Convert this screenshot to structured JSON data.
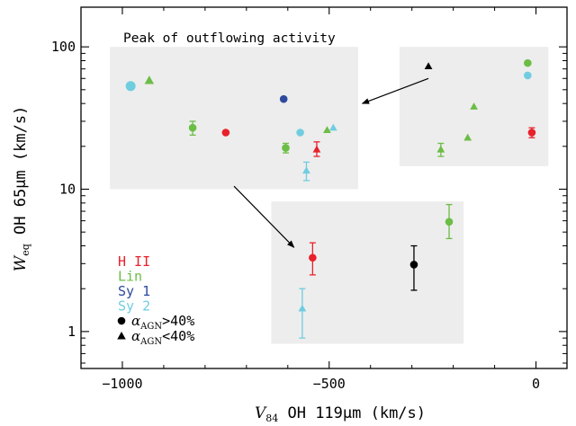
{
  "colors": {
    "hii": "#e8212a",
    "lin": "#6cbd45",
    "sy1": "#2e4a9e",
    "sy2": "#70cde0",
    "other": "#000000",
    "box_fill": "#ededed",
    "axis": "#000000"
  },
  "chart_data": {
    "type": "scatter",
    "title": "",
    "xlabel": "V84 OH 119μm (km/s)",
    "ylabel": "Weq OH 65μm (km/s)",
    "xlabel_parts": {
      "var": "V",
      "sub": "84",
      "rest": " OH 119μm (km/s)"
    },
    "ylabel_parts": {
      "var": "W",
      "sub": "eq",
      "rest": " OH 65μm (km/s)"
    },
    "xlim": [
      -1100,
      75
    ],
    "ylim": [
      0.55,
      190
    ],
    "yscale": "log",
    "grid": false,
    "xticks": [
      {
        "value": -1000,
        "label": "−1000"
      },
      {
        "value": -500,
        "label": "−500"
      },
      {
        "value": 0,
        "label": "0"
      }
    ],
    "yticks": [
      {
        "value": 1,
        "label": "1"
      },
      {
        "value": 10,
        "label": "10"
      },
      {
        "value": 100,
        "label": "100"
      }
    ],
    "annotations": {
      "peak_label": "Peak of outflowing activity"
    },
    "legend": {
      "position": "bottom-left",
      "entries": [
        {
          "label": "H II",
          "color": "hii"
        },
        {
          "label": "Lin",
          "color": "lin"
        },
        {
          "label": "Sy 1",
          "color": "sy1"
        },
        {
          "label": "Sy 2",
          "color": "sy2"
        }
      ],
      "markers": [
        {
          "symbol": "circle",
          "sym": "α",
          "sub": "AGN",
          "cond": ">40%"
        },
        {
          "symbol": "triangle",
          "sym": "α",
          "sub": "AGN",
          "cond": "<40%"
        }
      ]
    },
    "series": [
      {
        "class": "hii",
        "marker": "circle",
        "x": -750,
        "y": 25
      },
      {
        "class": "hii",
        "marker": "triangle",
        "x": -530,
        "y": 19,
        "yerr": [
          17,
          21.5
        ]
      },
      {
        "class": "hii",
        "marker": "circle",
        "x": -540,
        "y": 3.3,
        "yerr": [
          2.5,
          4.2
        ]
      },
      {
        "class": "hii",
        "marker": "circle",
        "x": -10,
        "y": 25,
        "yerr": [
          23,
          27
        ]
      },
      {
        "class": "lin",
        "marker": "triangle",
        "x": -935,
        "y": 58
      },
      {
        "class": "lin",
        "marker": "circle",
        "x": -830,
        "y": 27,
        "yerr": [
          24,
          30
        ]
      },
      {
        "class": "lin",
        "marker": "circle",
        "x": -605,
        "y": 19.5,
        "yerr": [
          18,
          21
        ]
      },
      {
        "class": "lin",
        "marker": "triangle",
        "x": -505,
        "y": 26
      },
      {
        "class": "lin",
        "marker": "triangle",
        "x": -230,
        "y": 19,
        "yerr": [
          17,
          21
        ]
      },
      {
        "class": "lin",
        "marker": "triangle",
        "x": -165,
        "y": 23
      },
      {
        "class": "lin",
        "marker": "triangle",
        "x": -150,
        "y": 38
      },
      {
        "class": "lin",
        "marker": "circle",
        "x": -20,
        "y": 77
      },
      {
        "class": "lin",
        "marker": "circle",
        "x": -210,
        "y": 5.9,
        "yerr": [
          4.5,
          7.8
        ]
      },
      {
        "class": "sy1",
        "marker": "circle",
        "x": -610,
        "y": 43
      },
      {
        "class": "sy2",
        "marker": "circle",
        "x": -980,
        "y": 53
      },
      {
        "class": "sy2",
        "marker": "circle",
        "x": -570,
        "y": 25
      },
      {
        "class": "sy2",
        "marker": "triangle",
        "x": -490,
        "y": 27
      },
      {
        "class": "sy2",
        "marker": "triangle",
        "x": -555,
        "y": 13.5,
        "yerr": [
          11.5,
          15.5
        ]
      },
      {
        "class": "sy2",
        "marker": "circle",
        "x": -20,
        "y": 63
      },
      {
        "class": "sy2",
        "marker": "triangle",
        "x": -565,
        "y": 1.45,
        "yerr": [
          0.9,
          2.0
        ]
      },
      {
        "class": "other",
        "marker": "triangle",
        "x": -260,
        "y": 73
      },
      {
        "class": "other",
        "marker": "circle",
        "x": -295,
        "y": 2.95,
        "yerr": [
          1.95,
          4.0
        ]
      }
    ]
  }
}
